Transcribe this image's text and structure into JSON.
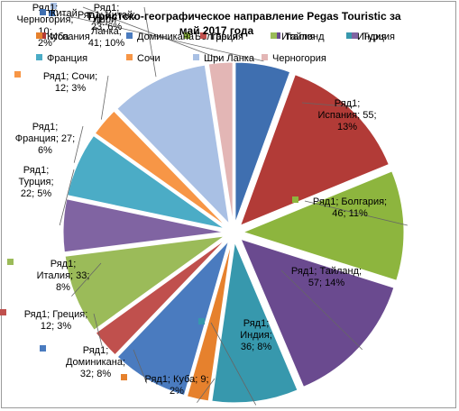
{
  "chart_data": {
    "type": "pie",
    "title": "Туристско-географическое направление Pegas Touristic за май 2017 года",
    "series_name": "Ряд1",
    "categories": [
      "Китай",
      "Испания",
      "Болгария",
      "Тайланд",
      "Индия",
      "Куба",
      "Доминикана",
      "Греция",
      "Италия",
      "Турция",
      "Франция",
      "Сочи",
      "Шри Ланка",
      "Черногория"
    ],
    "values": [
      23,
      55,
      46,
      57,
      36,
      9,
      32,
      12,
      33,
      22,
      27,
      12,
      41,
      10
    ],
    "percents": [
      "6%",
      "13%",
      "11%",
      "14%",
      "8%",
      "2%",
      "8%",
      "3%",
      "8%",
      "5%",
      "6%",
      "3%",
      "10%",
      "2%"
    ],
    "colors": [
      "#3f6fb0",
      "#b23b37",
      "#8db53e",
      "#6a4a8f",
      "#3798ad",
      "#e6812d",
      "#4a7bbf",
      "#c0504d",
      "#9bbb59",
      "#8064a2",
      "#4bacc6",
      "#f79646",
      "#a9c0e4",
      "#e3b6b5"
    ],
    "legend": {
      "position": "top",
      "entries": [
        "Китай",
        "Испания",
        "Болгария",
        "Тайланд",
        "Индия",
        "Куба",
        "Доминикана",
        "Греция",
        "Италия",
        "Турция",
        "Франция",
        "Сочи",
        "Шри Ланка",
        "Черногория"
      ]
    },
    "data_labels": [
      [
        "Ряд1; Китай;",
        "23; 6%"
      ],
      [
        "Ряд1;",
        "Испания; 55;",
        "13%"
      ],
      [
        "Ряд1; Болгария;",
        "46; 11%"
      ],
      [
        "Ряд1; Тайланд;",
        "57; 14%"
      ],
      [
        "Ряд1;",
        "Индия;",
        "36; 8%"
      ],
      [
        "Ряд1; Куба; 9;",
        "2%"
      ],
      [
        "Ряд1;",
        "Доминикана;",
        "32; 8%"
      ],
      [
        "Ряд1; Греция;",
        "12; 3%"
      ],
      [
        "Ряд1;",
        "Италия; 33;",
        "8%"
      ],
      [
        "Ряд1;",
        "Турция;",
        "22; 5%"
      ],
      [
        "Ряд1;",
        "Франция; 27;",
        "6%"
      ],
      [
        "Ряд1; Сочи;",
        "12; 3%"
      ],
      [
        "Ряд1;",
        "Шри",
        "Ланка;",
        "41; 10%"
      ],
      [
        "Ряд1;",
        "Черногория;",
        "10;",
        "2%"
      ]
    ]
  }
}
